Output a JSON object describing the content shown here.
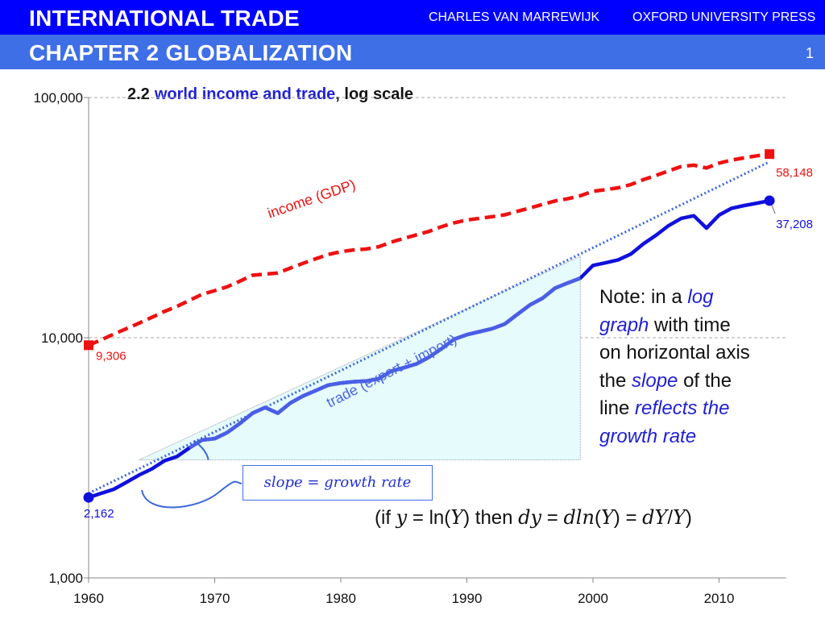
{
  "header": {
    "title": "INTERNATIONAL TRADE",
    "author": "CHARLES VAN MARREWIJK",
    "publisher": "OXFORD UNIVERSITY PRESS",
    "chapter": "CHAPTER 2   GLOBALIZATION",
    "page_number": "1"
  },
  "colors": {
    "header_dark": "#0000ff",
    "header_light": "#3f6fe6",
    "income": "#ee1111",
    "trade": "#1010dd",
    "trade_label": "#4a66e0",
    "trend": "#3a66dd",
    "fill": "#e6fbfb"
  },
  "chart_data": {
    "type": "line",
    "title_parts": [
      "2.2",
      "world income and trade",
      ", log scale"
    ],
    "yscale": "log",
    "ylim": [
      1000,
      100000
    ],
    "y_ticks": [
      1000,
      10000,
      100000
    ],
    "y_tick_labels": [
      "1,000",
      "10,000",
      "100,000"
    ],
    "xlim": [
      1960,
      2015
    ],
    "x_ticks": [
      1960,
      1970,
      1980,
      1990,
      2000,
      2010
    ],
    "x_tick_labels": [
      "1960",
      "1970",
      "1980",
      "1990",
      "2000",
      "2010"
    ],
    "grid": "horizontal dashed",
    "series": [
      {
        "name": "income (GDP)",
        "style": "dashed",
        "x": [
          1960,
          1961,
          1962,
          1963,
          1964,
          1965,
          1966,
          1967,
          1968,
          1969,
          1970,
          1971,
          1972,
          1973,
          1974,
          1975,
          1976,
          1977,
          1978,
          1979,
          1980,
          1981,
          1982,
          1983,
          1984,
          1985,
          1986,
          1987,
          1988,
          1989,
          1990,
          1991,
          1992,
          1993,
          1994,
          1995,
          1996,
          1997,
          1998,
          1999,
          2000,
          2001,
          2002,
          2003,
          2004,
          2005,
          2006,
          2007,
          2008,
          2009,
          2010,
          2011,
          2012,
          2013,
          2014
        ],
        "values": [
          9306,
          9800,
          10350,
          10900,
          11500,
          12150,
          12850,
          13500,
          14300,
          15150,
          15700,
          16300,
          17200,
          18200,
          18400,
          18600,
          19500,
          20400,
          21300,
          22200,
          22800,
          23200,
          23400,
          23900,
          25000,
          25900,
          26800,
          27700,
          29000,
          30100,
          30900,
          31400,
          31900,
          32500,
          33600,
          34700,
          35900,
          37100,
          37900,
          39000,
          40700,
          41300,
          42100,
          43400,
          45500,
          47400,
          49500,
          51600,
          52300,
          50900,
          53300,
          54900,
          56100,
          57200,
          58148
        ],
        "start_label": "9,306",
        "end_label": "58,148"
      },
      {
        "name": "trade (export + import)",
        "style": "solid",
        "x": [
          1960,
          1961,
          1962,
          1963,
          1964,
          1965,
          1966,
          1967,
          1968,
          1969,
          1970,
          1971,
          1972,
          1973,
          1974,
          1975,
          1976,
          1977,
          1978,
          1979,
          1980,
          1981,
          1982,
          1983,
          1984,
          1985,
          1986,
          1987,
          1988,
          1989,
          1990,
          1991,
          1992,
          1993,
          1994,
          1995,
          1996,
          1997,
          1998,
          1999,
          2000,
          2001,
          2002,
          2003,
          2004,
          2005,
          2006,
          2007,
          2008,
          2009,
          2010,
          2011,
          2012,
          2013,
          2014
        ],
        "values": [
          2162,
          2250,
          2340,
          2500,
          2680,
          2840,
          3070,
          3200,
          3480,
          3750,
          3800,
          4030,
          4400,
          4850,
          5120,
          4850,
          5350,
          5720,
          6020,
          6350,
          6480,
          6560,
          6600,
          6750,
          7250,
          7500,
          7780,
          8300,
          9000,
          9870,
          10300,
          10600,
          10900,
          11400,
          12500,
          13700,
          14600,
          16100,
          16900,
          17700,
          20000,
          20500,
          21100,
          22300,
          24600,
          26700,
          29300,
          31400,
          32200,
          28600,
          32400,
          34600,
          35500,
          36300,
          37208
        ],
        "start_label": "2,162",
        "end_label": "37,208"
      }
    ],
    "trend_line": {
      "x": [
        1960,
        2014
      ],
      "values": [
        2250,
        54000
      ]
    },
    "slope_triangle": {
      "x": [
        1964,
        1999
      ],
      "y_low": 3100,
      "y_high": 21800
    },
    "annotations": {
      "income_label": "income (GDP)",
      "trade_label": "trade (export + import)"
    }
  },
  "note": {
    "line1_a": "Note: in a ",
    "line1_b": "log",
    "line2_a": "graph",
    "line2_b": " with time",
    "line3": "on horizontal axis",
    "line4_a": "the ",
    "line4_b": "slope",
    "line4_c": " of the",
    "line5_a": "line ",
    "line5_b": "reflects the",
    "line6": "growth rate"
  },
  "slope_box": "slope = growth rate",
  "formula": {
    "p1": "(if ",
    "p2": "y",
    "p3": " = ln(",
    "p4": "Y",
    "p5": ") then ",
    "p6": "dy",
    "p7": " = ",
    "p8": "dln",
    "p9": "(",
    "p10": "Y",
    "p11": ") = ",
    "p12": "dY",
    "p13": "/",
    "p14": "Y",
    "p15": ")"
  }
}
